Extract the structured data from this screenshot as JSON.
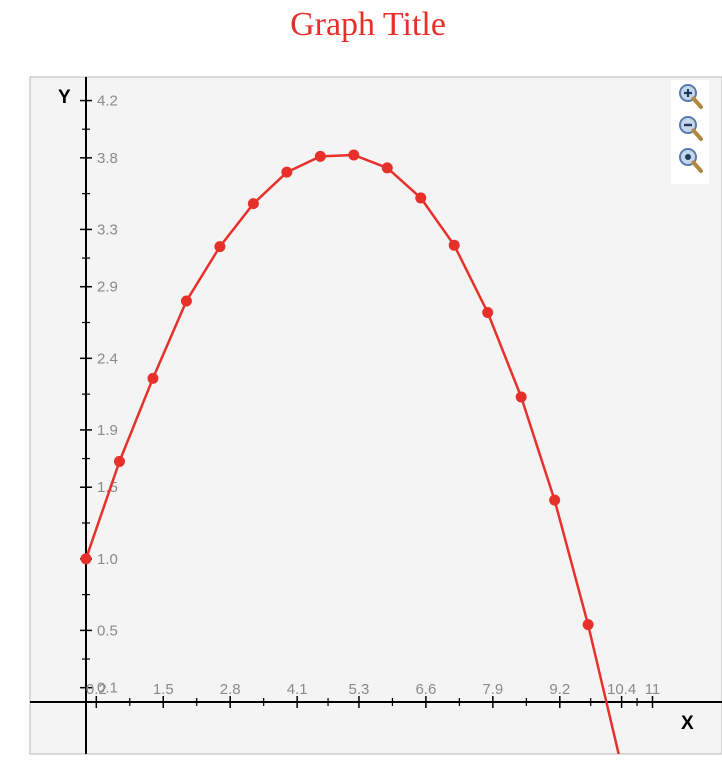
{
  "page": {
    "title": "Graph Title",
    "title_color": "#e8302a"
  },
  "chart_data": {
    "type": "line",
    "title": "Graph Title",
    "xlabel": "X",
    "ylabel": "Y",
    "xlim": [
      -0.1,
      11
    ],
    "ylim": [
      -0.5,
      4.2
    ],
    "x_ticks": [
      {
        "v": 0.2,
        "label": "0.2"
      },
      {
        "v": 1.5,
        "label": "1.5"
      },
      {
        "v": 2.8,
        "label": "2.8"
      },
      {
        "v": 4.1,
        "label": "4.1"
      },
      {
        "v": 5.3,
        "label": "5.3"
      },
      {
        "v": 6.6,
        "label": "6.6"
      },
      {
        "v": 7.9,
        "label": "7.9"
      },
      {
        "v": 9.2,
        "label": "9.2"
      },
      {
        "v": 10.4,
        "label": "10.4"
      },
      {
        "v": 11.0,
        "label": "11"
      }
    ],
    "y_ticks": [
      {
        "v": 0.1,
        "label": "0.1"
      },
      {
        "v": 0.5,
        "label": "0.5"
      },
      {
        "v": 1.0,
        "label": "1.0"
      },
      {
        "v": 1.5,
        "label": "1.5"
      },
      {
        "v": 1.9,
        "label": "1.9"
      },
      {
        "v": 2.4,
        "label": "2.4"
      },
      {
        "v": 2.9,
        "label": "2.9"
      },
      {
        "v": 3.3,
        "label": "3.3"
      },
      {
        "v": 3.8,
        "label": "3.8"
      },
      {
        "v": 4.2,
        "label": "4.2"
      }
    ],
    "series": [
      {
        "color": "#e8302a",
        "points": [
          {
            "x": 0.0,
            "y": 1.0
          },
          {
            "x": 0.65,
            "y": 1.68
          },
          {
            "x": 1.3,
            "y": 2.26
          },
          {
            "x": 1.95,
            "y": 2.8
          },
          {
            "x": 2.6,
            "y": 3.18
          },
          {
            "x": 3.25,
            "y": 3.48
          },
          {
            "x": 3.9,
            "y": 3.7
          },
          {
            "x": 4.55,
            "y": 3.81
          },
          {
            "x": 5.2,
            "y": 3.82
          },
          {
            "x": 5.85,
            "y": 3.73
          },
          {
            "x": 6.5,
            "y": 3.52
          },
          {
            "x": 7.15,
            "y": 3.19
          },
          {
            "x": 7.8,
            "y": 2.72
          },
          {
            "x": 8.45,
            "y": 2.13
          },
          {
            "x": 9.1,
            "y": 1.41
          },
          {
            "x": 9.75,
            "y": 0.54
          },
          {
            "x": 10.4,
            "y": -0.45
          }
        ]
      }
    ],
    "grid": false,
    "legend": "none"
  },
  "toolbar": {
    "zoom_in_icon": "zoom-in-icon",
    "zoom_out_icon": "zoom-out-icon",
    "zoom_reset_icon": "zoom-reset-icon"
  }
}
